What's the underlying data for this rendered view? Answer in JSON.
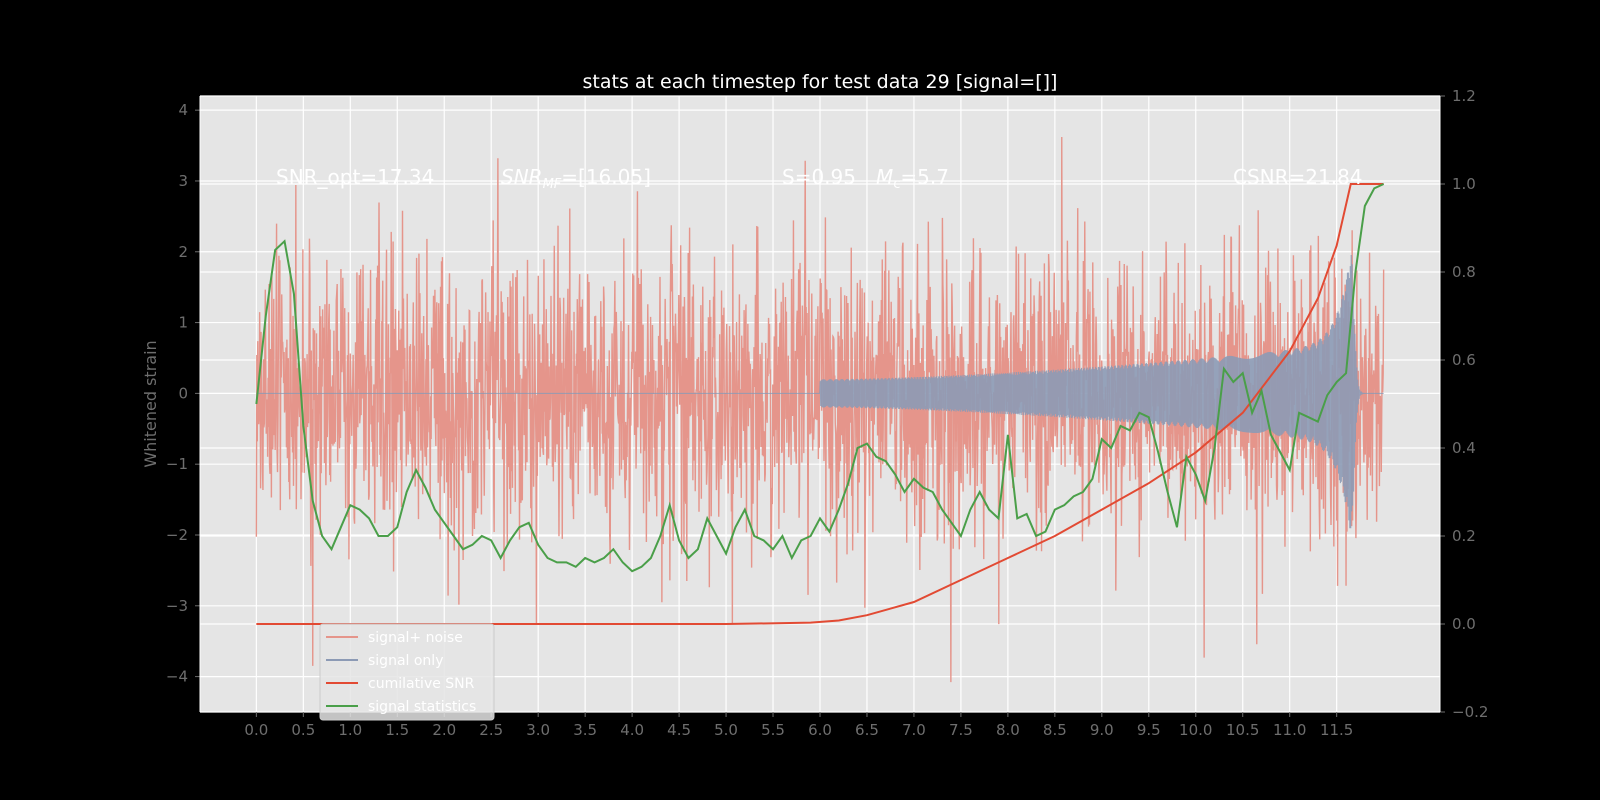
{
  "chart_data": {
    "type": "line",
    "title": "stats at each timestep for test data 29 [signal=[]]",
    "ylabel": "Whitened strain",
    "xlabel": "",
    "xlim": [
      -0.6,
      12.6
    ],
    "ylim": [
      -4.5,
      4.2
    ],
    "y2lim": [
      -0.2,
      1.2
    ],
    "x_ticks": [
      "0.0",
      "0.5",
      "1.0",
      "1.5",
      "2.0",
      "2.5",
      "3.0",
      "3.5",
      "4.0",
      "4.5",
      "5.0",
      "5.5",
      "6.0",
      "6.5",
      "7.0",
      "7.5",
      "8.0",
      "8.5",
      "9.0",
      "9.5",
      "10.0",
      "10.5",
      "11.0",
      "11.5"
    ],
    "y_ticks": [
      "4",
      "3",
      "2",
      "1",
      "0",
      "−1",
      "−2",
      "−3",
      "−4"
    ],
    "y2_ticks": [
      "1.2",
      "1.0",
      "0.8",
      "0.6",
      "0.4",
      "0.2",
      "0.0",
      "−0.2"
    ],
    "grid": true,
    "legend_position": "lower-left",
    "annotations": {
      "snr_opt": "SNR_opt=17.34",
      "snr_mf": "SNR",
      "snr_mf_sub": "MF",
      "snr_mf_value": "=[16.05]",
      "s_value": "S=0.95",
      "m_symbol": "M",
      "m_sub": "c",
      "m_value": "=5.7",
      "csnr": "CSNR=21.84"
    },
    "series": [
      {
        "name": "signal+ noise",
        "color": "#e5958b",
        "note": "whitened noise + signal, dense timeseries",
        "noise_std": 1.0,
        "x_range": [
          0.0,
          12.0
        ]
      },
      {
        "name": "signal only",
        "color": "#8c9ab5",
        "signal_start": 6.0,
        "merger_time": 11.65,
        "peak_amplitude": 2.0
      },
      {
        "name": "cumilative SNR",
        "color": "#e24a33",
        "x": [
          0.0,
          5.0,
          5.9,
          6.2,
          6.5,
          7.0,
          7.5,
          8.0,
          8.5,
          9.0,
          9.5,
          10.0,
          10.5,
          11.0,
          11.3,
          11.5,
          11.65,
          12.0
        ],
        "y": [
          0.0,
          0.0,
          0.003,
          0.008,
          0.02,
          0.05,
          0.1,
          0.15,
          0.2,
          0.26,
          0.32,
          0.39,
          0.48,
          0.62,
          0.74,
          0.86,
          1.0,
          1.0
        ]
      },
      {
        "name": "signal statistics",
        "color": "#4a9f49",
        "x": [
          0.0,
          0.1,
          0.2,
          0.3,
          0.4,
          0.5,
          0.6,
          0.7,
          0.8,
          0.9,
          1.0,
          1.1,
          1.2,
          1.3,
          1.4,
          1.5,
          1.6,
          1.7,
          1.8,
          1.9,
          2.0,
          2.1,
          2.2,
          2.3,
          2.4,
          2.5,
          2.6,
          2.7,
          2.8,
          2.9,
          3.0,
          3.1,
          3.2,
          3.3,
          3.4,
          3.5,
          3.6,
          3.7,
          3.8,
          3.9,
          4.0,
          4.1,
          4.2,
          4.3,
          4.4,
          4.5,
          4.6,
          4.7,
          4.8,
          4.9,
          5.0,
          5.1,
          5.2,
          5.3,
          5.4,
          5.5,
          5.6,
          5.7,
          5.8,
          5.9,
          6.0,
          6.1,
          6.2,
          6.3,
          6.4,
          6.5,
          6.6,
          6.7,
          6.8,
          6.9,
          7.0,
          7.1,
          7.2,
          7.3,
          7.4,
          7.5,
          7.6,
          7.7,
          7.8,
          7.9,
          8.0,
          8.1,
          8.2,
          8.3,
          8.4,
          8.5,
          8.6,
          8.7,
          8.8,
          8.9,
          9.0,
          9.1,
          9.2,
          9.3,
          9.4,
          9.5,
          9.6,
          9.7,
          9.8,
          9.9,
          10.0,
          10.1,
          10.2,
          10.3,
          10.4,
          10.5,
          10.6,
          10.7,
          10.8,
          10.9,
          11.0,
          11.1,
          11.2,
          11.3,
          11.4,
          11.5,
          11.6,
          11.7,
          11.8,
          11.9,
          12.0
        ],
        "y": [
          0.5,
          0.7,
          0.85,
          0.87,
          0.75,
          0.45,
          0.28,
          0.2,
          0.17,
          0.22,
          0.27,
          0.26,
          0.24,
          0.2,
          0.2,
          0.22,
          0.3,
          0.35,
          0.31,
          0.26,
          0.23,
          0.2,
          0.17,
          0.18,
          0.2,
          0.19,
          0.15,
          0.19,
          0.22,
          0.23,
          0.18,
          0.15,
          0.14,
          0.14,
          0.13,
          0.15,
          0.14,
          0.15,
          0.17,
          0.14,
          0.12,
          0.13,
          0.15,
          0.2,
          0.27,
          0.19,
          0.15,
          0.17,
          0.24,
          0.2,
          0.16,
          0.22,
          0.26,
          0.2,
          0.19,
          0.17,
          0.2,
          0.15,
          0.19,
          0.2,
          0.24,
          0.21,
          0.26,
          0.32,
          0.4,
          0.41,
          0.38,
          0.37,
          0.34,
          0.3,
          0.33,
          0.31,
          0.3,
          0.26,
          0.23,
          0.2,
          0.26,
          0.3,
          0.26,
          0.24,
          0.43,
          0.24,
          0.25,
          0.2,
          0.21,
          0.26,
          0.27,
          0.29,
          0.3,
          0.33,
          0.42,
          0.4,
          0.45,
          0.44,
          0.48,
          0.47,
          0.39,
          0.3,
          0.22,
          0.38,
          0.34,
          0.28,
          0.4,
          0.58,
          0.55,
          0.57,
          0.48,
          0.53,
          0.43,
          0.39,
          0.35,
          0.48,
          0.47,
          0.46,
          0.52,
          0.55,
          0.57,
          0.8,
          0.95,
          0.99,
          1.0
        ]
      }
    ]
  }
}
